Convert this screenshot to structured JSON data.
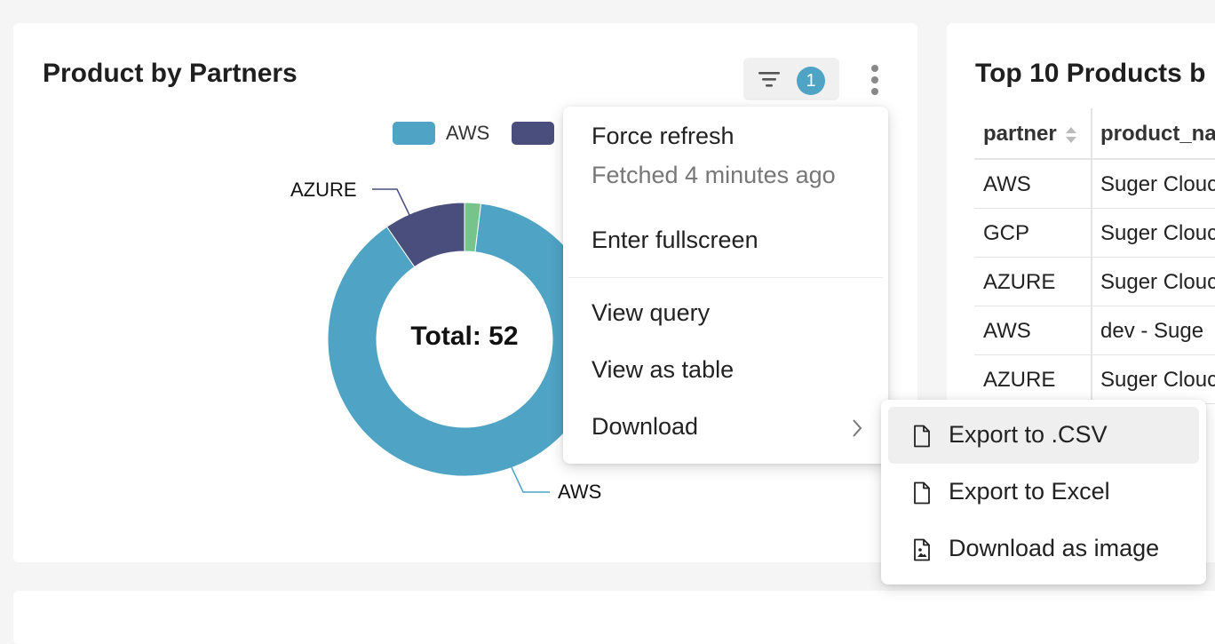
{
  "left_card": {
    "title": "Product by Partners",
    "filter_badge_count": "1",
    "total_label": "Total: 52"
  },
  "right_card": {
    "title": "Top 10 Products b",
    "columns": [
      "partner",
      "product_na"
    ],
    "rows": [
      [
        "AWS",
        "Suger Clouc"
      ],
      [
        "GCP",
        "Suger Clouc"
      ],
      [
        "AZURE",
        "Suger Clouc"
      ],
      [
        "AWS",
        "dev - Suge"
      ],
      [
        "AZURE",
        "Suger Clouc"
      ]
    ]
  },
  "chart_data": {
    "type": "pie",
    "style": "donut",
    "legend": [
      "AWS"
    ],
    "slices": [
      {
        "label": "AWS",
        "value": 46,
        "color": "#4fa3c4"
      },
      {
        "label": "AZURE",
        "value": 5,
        "color": "#4a4e7c"
      },
      {
        "label": "",
        "value": 1,
        "color": "#76c48c"
      }
    ],
    "center_text": "Total: 52"
  },
  "main_menu": {
    "items": [
      {
        "label": "Force refresh",
        "sub": "Fetched 4 minutes ago"
      },
      {
        "label": "Enter fullscreen"
      },
      {
        "label": "View query"
      },
      {
        "label": "View as table"
      },
      {
        "label": "Download"
      }
    ]
  },
  "download_menu": {
    "items": [
      {
        "label": "Export to .CSV",
        "icon": "file-icon"
      },
      {
        "label": "Export to Excel",
        "icon": "file-icon"
      },
      {
        "label": "Download as image",
        "icon": "file-image-icon"
      }
    ]
  },
  "colors": {
    "aws": "#4fa3c4",
    "azure": "#4a4e7c",
    "gcp": "#76c48c",
    "badge": "#4fa3c4"
  }
}
